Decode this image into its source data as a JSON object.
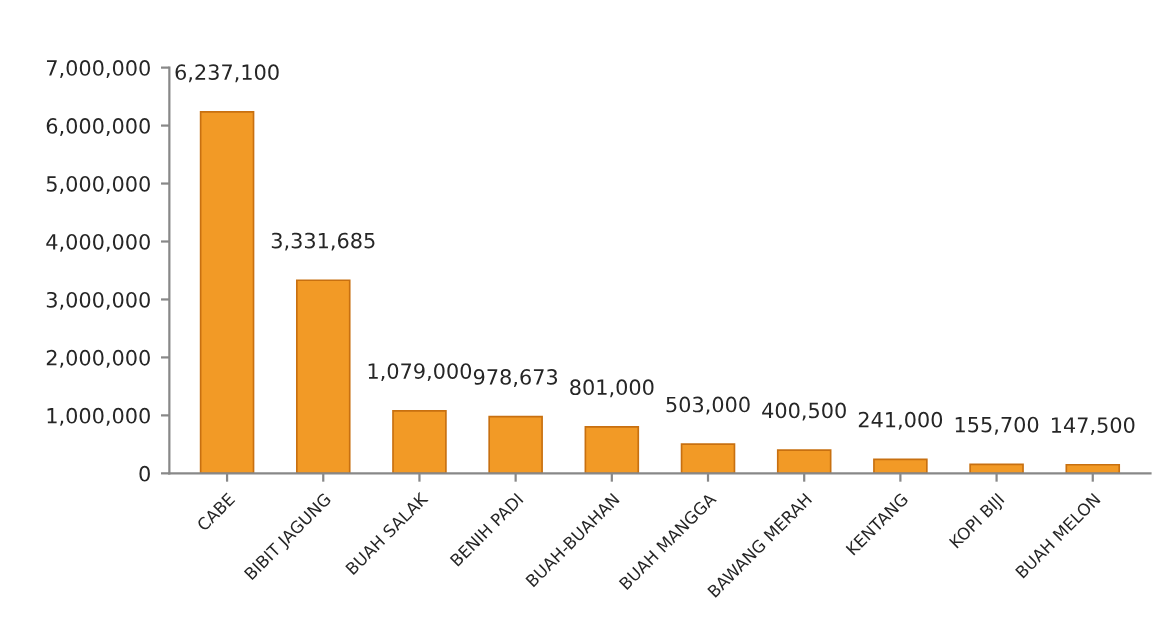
{
  "chart_data": {
    "type": "bar",
    "categories": [
      "CABE",
      "BIBIT JAGUNG",
      "BUAH SALAK",
      "BENIH PADI",
      "BUAH-BUAHAN",
      "BUAH MANGGA",
      "BAWANG MERAH",
      "KENTANG",
      "KOPI BIJI",
      "BUAH MELON"
    ],
    "values": [
      6237100,
      3331685,
      1079000,
      978673,
      801000,
      503000,
      400500,
      241000,
      155700,
      147500
    ],
    "value_labels": [
      "6,237,100",
      "3,331,685",
      "1,079,000",
      "978,673",
      "801,000",
      "503,000",
      "400,500",
      "241,000",
      "155,700",
      "147,500"
    ],
    "color": "#f29a26",
    "ylim": [
      0,
      7000000
    ],
    "yticks": [
      0,
      {
        "value": 1000000,
        "label": "1,000,000"
      },
      {
        "value": 2000000,
        "label": "2,000,000"
      },
      {
        "value": 3000000,
        "label": "3,000,000"
      },
      {
        "value": 4000000,
        "label": "4,000,000"
      },
      {
        "value": 5000000,
        "label": "5,000,000"
      },
      {
        "value": 6000000,
        "label": "6,000,000"
      },
      {
        "value": 7000000,
        "label": "7,000,000"
      }
    ],
    "grid": false,
    "legend": false
  }
}
